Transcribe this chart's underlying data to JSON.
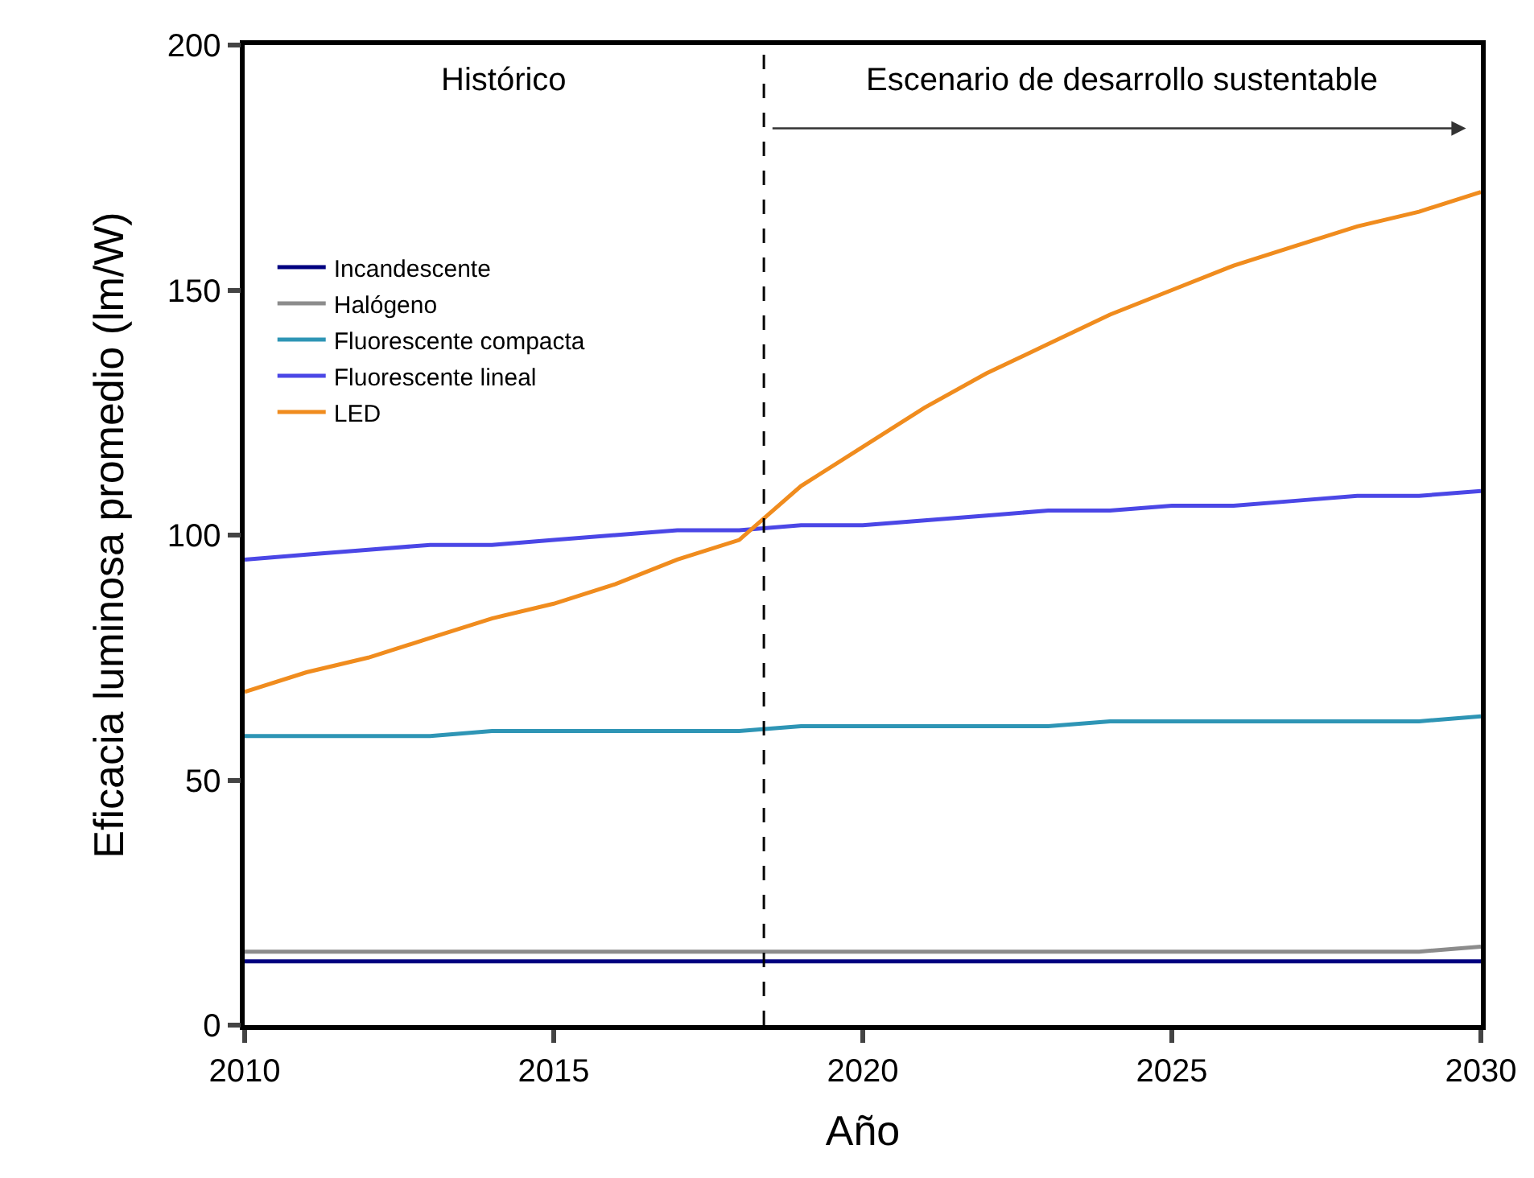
{
  "chart_data": {
    "type": "line",
    "xlabel": "Año",
    "ylabel": "Eficacia luminosa promedio (lm/W)",
    "x": [
      2010,
      2011,
      2012,
      2013,
      2014,
      2015,
      2016,
      2017,
      2018,
      2019,
      2020,
      2021,
      2022,
      2023,
      2024,
      2025,
      2026,
      2027,
      2028,
      2029,
      2030
    ],
    "series": [
      {
        "name": "Incandescente",
        "color": "#000080",
        "values": [
          13,
          13,
          13,
          13,
          13,
          13,
          13,
          13,
          13,
          13,
          13,
          13,
          13,
          13,
          13,
          13,
          13,
          13,
          13,
          13,
          13
        ]
      },
      {
        "name": "Halógeno",
        "color": "#8c8c8c",
        "values": [
          15,
          15,
          15,
          15,
          15,
          15,
          15,
          15,
          15,
          15,
          15,
          15,
          15,
          15,
          15,
          15,
          15,
          15,
          15,
          15,
          16
        ]
      },
      {
        "name": "Fluorescente compacta",
        "color": "#2e95b5",
        "values": [
          59,
          59,
          59,
          59,
          60,
          60,
          60,
          60,
          60,
          61,
          61,
          61,
          61,
          61,
          62,
          62,
          62,
          62,
          62,
          62,
          63
        ]
      },
      {
        "name": "Fluorescente lineal",
        "color": "#4b47e6",
        "values": [
          95,
          96,
          97,
          98,
          98,
          99,
          100,
          101,
          101,
          102,
          102,
          103,
          104,
          105,
          105,
          106,
          106,
          107,
          108,
          108,
          109
        ]
      },
      {
        "name": "LED",
        "color": "#f08c1e",
        "values": [
          68,
          72,
          75,
          79,
          83,
          86,
          90,
          95,
          99,
          110,
          118,
          126,
          133,
          139,
          145,
          150,
          155,
          159,
          163,
          166,
          170
        ]
      }
    ],
    "xlim": [
      2010,
      2030
    ],
    "xticks": [
      2010,
      2015,
      2020,
      2025,
      2030
    ],
    "ylim": [
      0,
      200
    ],
    "yticks": [
      0,
      50,
      100,
      150,
      200
    ],
    "ref_lines": [
      {
        "axis": "x",
        "value": 2018.4,
        "line_style": "dashed",
        "color": "#000000"
      }
    ],
    "annotations": [
      "Histórico",
      "Escenario de desarrollo sustentable"
    ],
    "grid": false,
    "legend": "top left",
    "marker": "none",
    "line_style": "solid"
  }
}
